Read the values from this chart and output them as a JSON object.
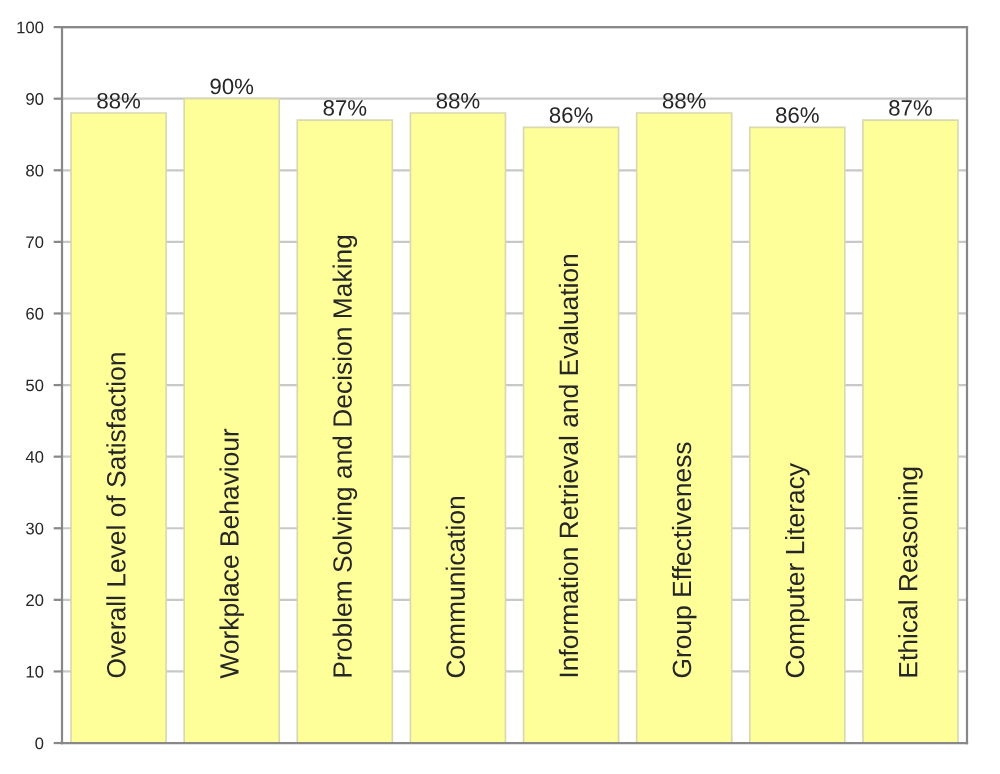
{
  "chart_data": {
    "type": "bar",
    "categories": [
      "Overall Level of Satisfaction",
      "Workplace Behaviour",
      "Problem Solving and Decision Making",
      "Communication",
      "Information Retrieval and Evaluation",
      "Group Effectiveness",
      "Computer Literacy",
      "Ethical Reasoning"
    ],
    "values": [
      88,
      90,
      87,
      88,
      86,
      88,
      86,
      87
    ],
    "value_labels": [
      "88%",
      "90%",
      "87%",
      "88%",
      "86%",
      "88%",
      "86%",
      "87%"
    ],
    "color": "#ffff99",
    "ylim": [
      0,
      100
    ],
    "yticks": [
      0,
      10,
      20,
      30,
      40,
      50,
      60,
      70,
      80,
      90,
      100
    ],
    "grid": "y"
  }
}
